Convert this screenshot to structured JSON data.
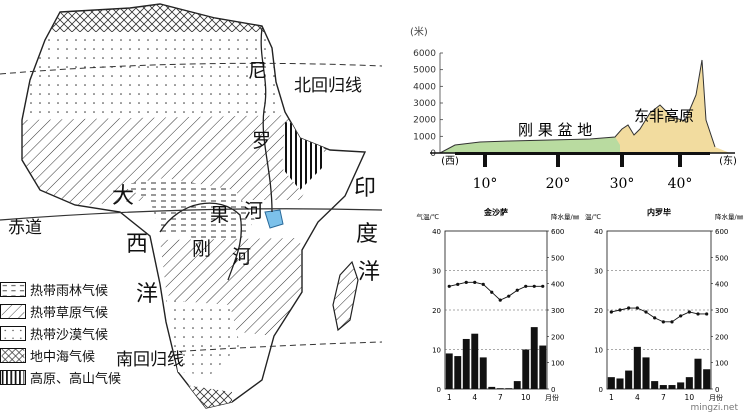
{
  "map": {
    "labels": {
      "tropic_cancer": "北回归线",
      "tropic_capricorn": "南回归线",
      "equator": "赤道",
      "atlantic_1": "大",
      "atlantic_2": "西",
      "atlantic_3": "洋",
      "indian_1": "印",
      "indian_2": "度",
      "indian_3": "洋",
      "nile_1": "尼",
      "nile_2": "罗",
      "nile_3": "河",
      "congo_1": "刚",
      "congo_2": "果",
      "congo_3": "河"
    }
  },
  "legend": [
    {
      "label": "热带雨林气候",
      "pattern": "dash"
    },
    {
      "label": "热带草原气候",
      "pattern": "diag"
    },
    {
      "label": "热带沙漠气候",
      "pattern": "dot"
    },
    {
      "label": "地中海气候",
      "pattern": "cross"
    },
    {
      "label": "高原、高山气候",
      "pattern": "vert"
    }
  ],
  "profile": {
    "unit": "(米)",
    "y_ticks": [
      "6000",
      "5000",
      "4000",
      "3000",
      "2000",
      "1000",
      "0"
    ],
    "x_ticks": [
      "10°",
      "20°",
      "30°",
      "40°"
    ],
    "west": "(西)",
    "east": "(东)",
    "region_congo": "刚 果 盆 地",
    "region_east": "东非高原",
    "colors": {
      "lowland": "#b9dba0",
      "highland": "#f2dc9f"
    }
  },
  "climate_labels": {
    "temp_axis": "气温/℃",
    "precip_axis": "降水量/㎜",
    "month_axis": "月份"
  },
  "chart_data": [
    {
      "type": "bar",
      "title": "金沙萨",
      "categories": [
        "1",
        "2",
        "3",
        "4",
        "5",
        "6",
        "7",
        "8",
        "9",
        "10",
        "11",
        "12"
      ],
      "x_tick_labels": [
        "1",
        "4",
        "7",
        "10"
      ],
      "series": [
        {
          "name": "降水量",
          "type": "bar",
          "axis": "right",
          "values": [
            135,
            125,
            190,
            210,
            120,
            8,
            3,
            3,
            30,
            150,
            235,
            165
          ]
        },
        {
          "name": "气温",
          "type": "line",
          "axis": "left",
          "values": [
            26,
            26.5,
            27,
            27,
            26.5,
            24.5,
            22.5,
            23.5,
            25,
            26,
            26,
            26
          ]
        }
      ],
      "ylim_left": [
        0,
        40
      ],
      "yticks_left": [
        "0",
        "10",
        "20",
        "30",
        "40"
      ],
      "ylim_right": [
        0,
        600
      ],
      "yticks_right": [
        "0",
        "100",
        "200",
        "300",
        "400",
        "500",
        "600"
      ],
      "grid": "dashed at 10, 20, 30"
    },
    {
      "type": "bar",
      "title": "内罗毕",
      "categories": [
        "1",
        "2",
        "3",
        "4",
        "5",
        "6",
        "7",
        "8",
        "9",
        "10",
        "11",
        "12"
      ],
      "x_tick_labels": [
        "1",
        "4",
        "7",
        "10"
      ],
      "series": [
        {
          "name": "降水量",
          "type": "bar",
          "axis": "right",
          "values": [
            45,
            40,
            70,
            160,
            120,
            30,
            15,
            15,
            25,
            45,
            115,
            75
          ]
        },
        {
          "name": "气温",
          "type": "line",
          "axis": "left",
          "values": [
            19.5,
            20,
            20.5,
            20.5,
            19.5,
            18,
            17,
            17,
            18.5,
            19.5,
            19,
            19
          ]
        }
      ],
      "ylim_left": [
        0,
        40
      ],
      "yticks_left": [
        "0",
        "10",
        "20",
        "30",
        "40"
      ],
      "ylim_right": [
        0,
        600
      ],
      "yticks_right": [
        "0",
        "100",
        "200",
        "300",
        "400",
        "500",
        "600"
      ],
      "grid": "dashed at 10, 20, 30"
    }
  ],
  "watermark": "mingzi.net"
}
